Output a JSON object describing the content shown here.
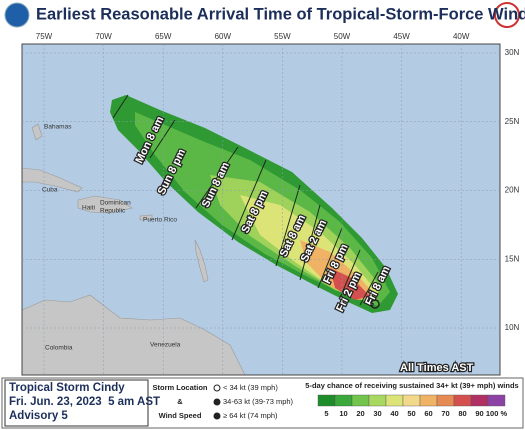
{
  "header": {
    "title": "Earliest Reasonable Arrival Time of Tropical-Storm-Force Winds"
  },
  "map": {
    "longitude_labels": [
      "75W",
      "70W",
      "65W",
      "60W",
      "55W",
      "50W",
      "45W",
      "40W"
    ],
    "latitude_labels": [
      "30N",
      "25N",
      "20N",
      "15N",
      "10N"
    ],
    "places": [
      "Bahamas",
      "Cuba",
      "Haiti",
      "Dominican",
      "Republic",
      "Puerto Rico",
      "Colombia",
      "Venezuela"
    ],
    "arrival_times": [
      "Mon 8 am",
      "Sun 8 pm",
      "Sun 8 am",
      "Sat 8 pm",
      "Sat 8 am",
      "Sat 2 am",
      "Fri 8 pm",
      "Fri 2 pm",
      "Fri 8 am"
    ],
    "note": "All Times AST"
  },
  "footer": {
    "storm": "Tropical Storm Cindy",
    "issued": "Fri. Jun. 23, 2023  5 am AST",
    "advisory": "Advisory 5",
    "legend_lines": [
      "Storm Location",
      "&",
      "Wind Speed"
    ],
    "symbols": [
      "< 34 kt (39 mph)",
      "34-63 kt (39-73 mph)",
      "≥ 64 kt (74 mph)"
    ],
    "scale_title": "5-day chance of receiving sustained 34+ kt (39+ mph) winds",
    "scale": [
      {
        "label": "5",
        "color": "#1e8c28"
      },
      {
        "label": "10",
        "color": "#3aa83a"
      },
      {
        "label": "20",
        "color": "#72c44c"
      },
      {
        "label": "30",
        "color": "#a8d860"
      },
      {
        "label": "40",
        "color": "#dce478"
      },
      {
        "label": "50",
        "color": "#f2d88a"
      },
      {
        "label": "60",
        "color": "#f0b264"
      },
      {
        "label": "70",
        "color": "#e48a52"
      },
      {
        "label": "80",
        "color": "#d4504e"
      },
      {
        "label": "90",
        "color": "#b03064"
      },
      {
        "label": "100 %",
        "color": "#8c42a4"
      }
    ]
  }
}
